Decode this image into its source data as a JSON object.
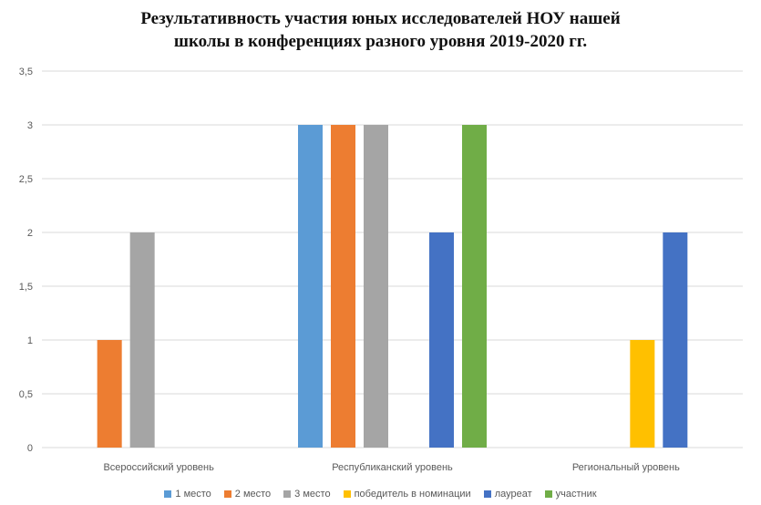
{
  "chart_data": {
    "type": "bar",
    "title_lines": [
      "Результативность участия юных исследователей НОУ нашей",
      "школы в конференциях разного уровня 2019-2020 гг."
    ],
    "categories": [
      "Всероссийский уровень",
      "Республиканский уровень",
      "Региональный уровень"
    ],
    "series": [
      {
        "name": "1 место",
        "color": "#5B9BD5",
        "values": [
          0,
          3,
          0
        ]
      },
      {
        "name": "2 место",
        "color": "#ED7D31",
        "values": [
          1,
          3,
          0
        ]
      },
      {
        "name": "3 место",
        "color": "#A5A5A5",
        "values": [
          2,
          3,
          0
        ]
      },
      {
        "name": "победитель в номинации",
        "color": "#FFC000",
        "values": [
          0,
          0,
          1
        ]
      },
      {
        "name": "лауреат",
        "color": "#4472C4",
        "values": [
          0,
          2,
          2
        ]
      },
      {
        "name": "участник",
        "color": "#70AD47",
        "values": [
          0,
          3,
          0
        ]
      }
    ],
    "y_ticks": [
      "0",
      "0,5",
      "1",
      "1,5",
      "2",
      "2,5",
      "3",
      "3,5"
    ],
    "ylim": [
      0,
      3.5
    ],
    "grid": true,
    "legend_position": "bottom"
  }
}
